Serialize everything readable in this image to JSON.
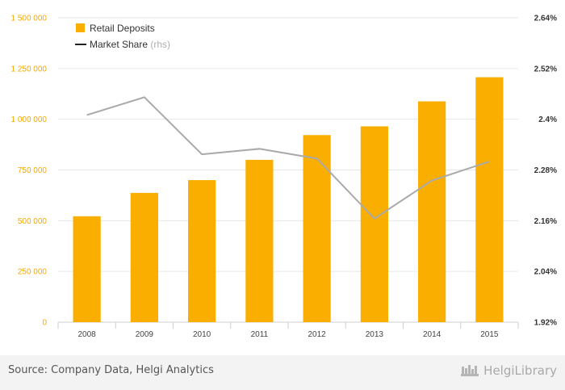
{
  "chart_data": {
    "type": "bar",
    "categories": [
      "2008",
      "2009",
      "2010",
      "2011",
      "2012",
      "2013",
      "2014",
      "2015"
    ],
    "series": [
      {
        "name": "Retail Deposits",
        "type": "bar",
        "axis": "left",
        "color": "#f9ae00",
        "values": [
          522000,
          637000,
          700000,
          800000,
          922000,
          965000,
          1088000,
          1207000
        ]
      },
      {
        "name": "Market Share",
        "legend_suffix": " (rhs)",
        "type": "line",
        "axis": "right",
        "color": "#aaaaaa",
        "values": [
          2.41,
          2.452,
          2.317,
          2.33,
          2.307,
          2.165,
          2.255,
          2.3
        ]
      }
    ],
    "y_left": {
      "min": 0,
      "max": 1500000,
      "ticks": [
        0,
        250000,
        500000,
        750000,
        1000000,
        1250000,
        1500000
      ],
      "tick_labels": [
        "0",
        "250 000",
        "500 000",
        "750 000",
        "1 000 000",
        "1 250 000",
        "1 500 000"
      ],
      "label_color": "#f5a800"
    },
    "y_right": {
      "min": 1.92,
      "max": 2.64,
      "ticks": [
        1.92,
        2.04,
        2.16,
        2.28,
        2.4,
        2.52,
        2.64
      ],
      "tick_labels": [
        "1.92%",
        "2.04%",
        "2.16%",
        "2.28%",
        "2.4%",
        "2.52%",
        "2.64%"
      ]
    },
    "grid": true,
    "legend_position": "top-left"
  },
  "footer": {
    "source": "Source: Company Data, Helgi Analytics",
    "brand": "HelgiLibrary"
  }
}
